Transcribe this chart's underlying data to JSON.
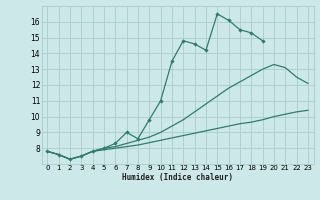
{
  "xlabel": "Humidex (Indice chaleur)",
  "bg_color": "#cce8e8",
  "grid_color": "#b0d0d0",
  "line_color": "#2e7d6e",
  "xlim": [
    -0.5,
    23.5
  ],
  "ylim": [
    7,
    17
  ],
  "xticks": [
    0,
    1,
    2,
    3,
    4,
    5,
    6,
    7,
    8,
    9,
    10,
    11,
    12,
    13,
    14,
    15,
    16,
    17,
    18,
    19,
    20,
    21,
    22,
    23
  ],
  "yticks": [
    8,
    9,
    10,
    11,
    12,
    13,
    14,
    15,
    16
  ],
  "line1_x": [
    0,
    1,
    2,
    3,
    4,
    5,
    6,
    7,
    8,
    9,
    10,
    11,
    12,
    13,
    14,
    15,
    16,
    17,
    18,
    19
  ],
  "line1_y": [
    7.8,
    7.6,
    7.3,
    7.5,
    7.8,
    8.0,
    8.3,
    9.0,
    8.6,
    9.8,
    11.0,
    13.5,
    14.8,
    14.6,
    14.2,
    16.5,
    16.1,
    15.5,
    15.3,
    14.8
  ],
  "line2_x": [
    0,
    1,
    2,
    3,
    4,
    5,
    6,
    7,
    8,
    9,
    10,
    11,
    12,
    13,
    14,
    15,
    16,
    17,
    18,
    19,
    20,
    21,
    22,
    23
  ],
  "line2_y": [
    7.8,
    7.6,
    7.3,
    7.5,
    7.8,
    8.0,
    8.1,
    8.3,
    8.5,
    8.7,
    9.0,
    9.4,
    9.8,
    10.3,
    10.8,
    11.3,
    11.8,
    12.2,
    12.6,
    13.0,
    13.3,
    13.1,
    12.5,
    12.1
  ],
  "line3_x": [
    0,
    1,
    2,
    3,
    4,
    5,
    6,
    7,
    8,
    9,
    10,
    11,
    12,
    13,
    14,
    15,
    16,
    17,
    18,
    19,
    20,
    21,
    22,
    23
  ],
  "line3_y": [
    7.8,
    7.6,
    7.3,
    7.5,
    7.8,
    7.9,
    8.0,
    8.1,
    8.2,
    8.35,
    8.5,
    8.65,
    8.8,
    8.95,
    9.1,
    9.25,
    9.4,
    9.55,
    9.65,
    9.8,
    10.0,
    10.15,
    10.3,
    10.4
  ]
}
